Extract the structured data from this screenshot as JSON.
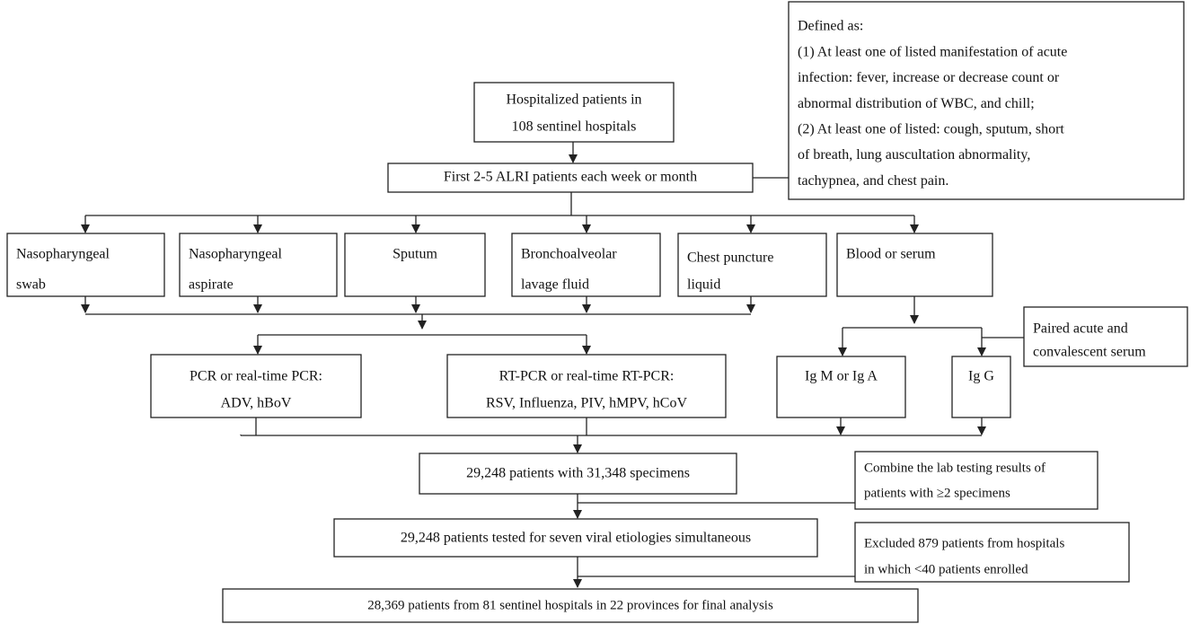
{
  "definition": {
    "lines": [
      "Defined as:",
      "(1) At least one of listed manifestation of acute",
      "infection: fever, increase or decrease count or",
      "abnormal distribution of WBC, and chill;",
      "(2) At least one of listed: cough, sputum, short",
      "of breath, lung auscultation abnormality,",
      "tachypnea, and chest pain."
    ]
  },
  "nodes": [
    {
      "lines": [
        "Hospitalized patients in",
        "108 sentinel hospitals"
      ]
    },
    {
      "lines": [
        "First 2-5 ALRI patients each week or month"
      ]
    },
    {
      "lines": [
        "Nasopharyngeal",
        "swab"
      ]
    },
    {
      "lines": [
        "Nasopharyngeal",
        "aspirate"
      ]
    },
    {
      "lines": [
        "Sputum"
      ]
    },
    {
      "lines": [
        "Bronchoalveolar",
        "lavage fluid"
      ]
    },
    {
      "lines": [
        "Chest puncture",
        "liquid"
      ]
    },
    {
      "lines": [
        "Blood or serum"
      ]
    },
    {
      "lines": [
        "Paired acute and",
        "convalescent serum"
      ]
    },
    {
      "lines": [
        "PCR or real-time PCR:",
        "ADV, hBoV"
      ]
    },
    {
      "lines": [
        "RT-PCR or real-time RT-PCR:",
        "RSV, Influenza, PIV, hMPV, hCoV"
      ]
    },
    {
      "lines": [
        "Ig M or Ig A"
      ]
    },
    {
      "lines": [
        "Ig G"
      ]
    },
    {
      "lines": [
        "29,248 patients with 31,348 specimens"
      ]
    },
    {
      "lines": [
        "Combine the lab testing results of",
        "patients with ≥2 specimens"
      ]
    },
    {
      "lines": [
        "29,248 patients tested for seven viral etiologies simultaneous"
      ]
    },
    {
      "lines": [
        "Excluded 879 patients from hospitals",
        "in which <40 patients enrolled"
      ]
    },
    {
      "lines": [
        "28,369 patients from 81 sentinel hospitals in 22 provinces for final analysis"
      ]
    }
  ]
}
